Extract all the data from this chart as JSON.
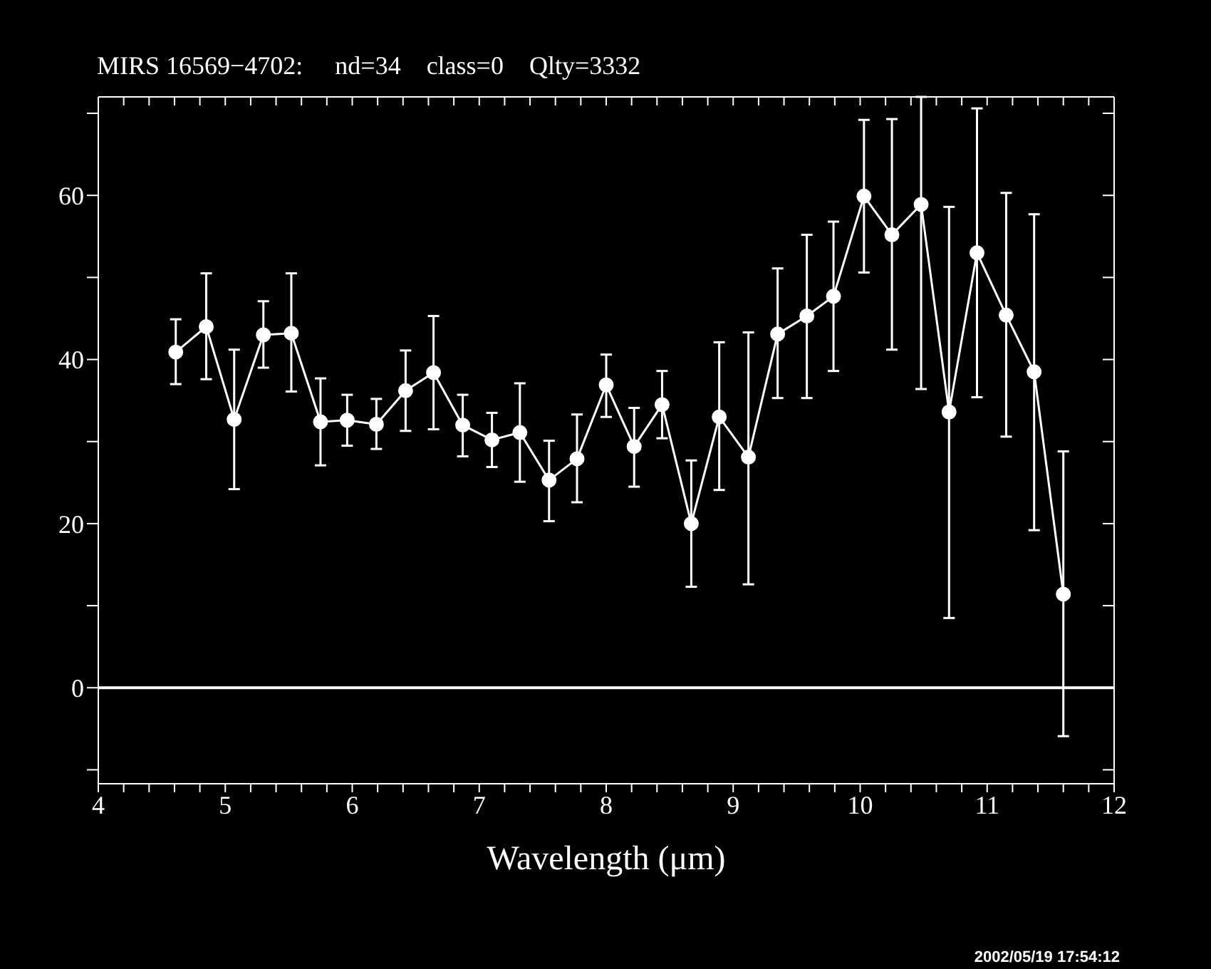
{
  "chart_data": {
    "type": "line",
    "title": "MIRS 16569−4702:     nd=34    class=0    Qlty=3332",
    "xlabel": "Wavelength (μm)",
    "annotations": [
      "2002/05/19 17:54:12"
    ],
    "x": [
      4.61,
      4.85,
      5.07,
      5.3,
      5.52,
      5.75,
      5.96,
      6.19,
      6.42,
      6.64,
      6.87,
      7.1,
      7.32,
      7.55,
      7.77,
      8.0,
      8.22,
      8.44,
      8.67,
      8.89,
      9.12,
      9.35,
      9.58,
      9.79,
      10.03,
      10.25,
      10.48,
      10.7,
      10.92,
      11.15,
      11.37,
      11.6
    ],
    "series": [
      {
        "color": "#ffffff",
        "values": [
          40.9,
          44.0,
          32.7,
          43.0,
          43.2,
          32.4,
          32.6,
          32.1,
          36.2,
          38.4,
          32.0,
          30.2,
          31.1,
          25.3,
          27.9,
          36.9,
          29.4,
          34.5,
          20.0,
          33.0,
          28.1,
          43.1,
          45.3,
          47.7,
          59.9,
          55.2,
          58.9,
          33.6,
          53.0,
          45.4,
          38.5,
          11.4
        ],
        "errors": [
          [
            37.0,
            44.9
          ],
          [
            37.6,
            50.5
          ],
          [
            24.2,
            41.2
          ],
          [
            39.0,
            47.1
          ],
          [
            36.1,
            50.5
          ],
          [
            27.1,
            37.7
          ],
          [
            29.5,
            35.7
          ],
          [
            29.1,
            35.2
          ],
          [
            31.3,
            41.1
          ],
          [
            31.5,
            45.3
          ],
          [
            28.2,
            35.7
          ],
          [
            26.9,
            33.5
          ],
          [
            25.1,
            37.1
          ],
          [
            20.3,
            30.1
          ],
          [
            22.6,
            33.3
          ],
          [
            33.0,
            40.6
          ],
          [
            24.5,
            34.1
          ],
          [
            30.4,
            38.6
          ],
          [
            12.3,
            27.7
          ],
          [
            24.1,
            42.1
          ],
          [
            12.6,
            43.3
          ],
          [
            35.3,
            51.1
          ],
          [
            35.3,
            55.2
          ],
          [
            38.6,
            56.8
          ],
          [
            50.6,
            69.2
          ],
          [
            41.2,
            69.3
          ],
          [
            36.4,
            72
          ],
          [
            8.5,
            58.6
          ],
          [
            35.4,
            70.6
          ],
          [
            30.6,
            60.3
          ],
          [
            19.2,
            57.7
          ],
          [
            -5.9,
            28.8
          ]
        ]
      }
    ],
    "xlim": [
      4,
      12
    ],
    "ylim": [
      -11.7,
      72
    ],
    "xticks": [
      4,
      {
        "value": 4.2,
        "label": null
      },
      {
        "value": 4.4,
        "label": null
      },
      {
        "value": 4.6,
        "label": null
      },
      {
        "value": 4.8,
        "label": null
      },
      5,
      {
        "value": 5.2,
        "label": null
      },
      {
        "value": 5.4,
        "label": null
      },
      {
        "value": 5.6,
        "label": null
      },
      {
        "value": 5.8,
        "label": null
      },
      6,
      {
        "value": 6.2,
        "label": null
      },
      {
        "value": 6.4,
        "label": null
      },
      {
        "value": 6.6,
        "label": null
      },
      {
        "value": 6.8,
        "label": null
      },
      7,
      {
        "value": 7.2,
        "label": null
      },
      {
        "value": 7.4,
        "label": null
      },
      {
        "value": 7.6,
        "label": null
      },
      {
        "value": 7.8,
        "label": null
      },
      8,
      {
        "value": 8.2,
        "label": null
      },
      {
        "value": 8.4,
        "label": null
      },
      {
        "value": 8.6,
        "label": null
      },
      {
        "value": 8.8,
        "label": null
      },
      9,
      {
        "value": 9.2,
        "label": null
      },
      {
        "value": 9.4,
        "label": null
      },
      {
        "value": 9.6,
        "label": null
      },
      {
        "value": 9.8,
        "label": null
      },
      10,
      {
        "value": 10.2,
        "label": null
      },
      {
        "value": 10.4,
        "label": null
      },
      {
        "value": 10.6,
        "label": null
      },
      {
        "value": 10.8,
        "label": null
      },
      11,
      {
        "value": 11.2,
        "label": null
      },
      {
        "value": 11.4,
        "label": null
      },
      {
        "value": 11.6,
        "label": null
      },
      {
        "value": 11.8,
        "label": null
      },
      12
    ],
    "yticks": [
      {
        "value": -10,
        "label": null
      },
      0,
      {
        "value": 10,
        "label": null
      },
      20,
      {
        "value": 30,
        "label": null
      },
      40,
      {
        "value": 50,
        "label": null
      },
      60,
      {
        "value": 70,
        "label": null
      }
    ],
    "ref_lines": [
      {
        "axis": "y",
        "value": 0,
        "color": "#ffffff"
      }
    ],
    "marker": "circle",
    "line_style": "solid",
    "grid": false,
    "legend": false
  }
}
